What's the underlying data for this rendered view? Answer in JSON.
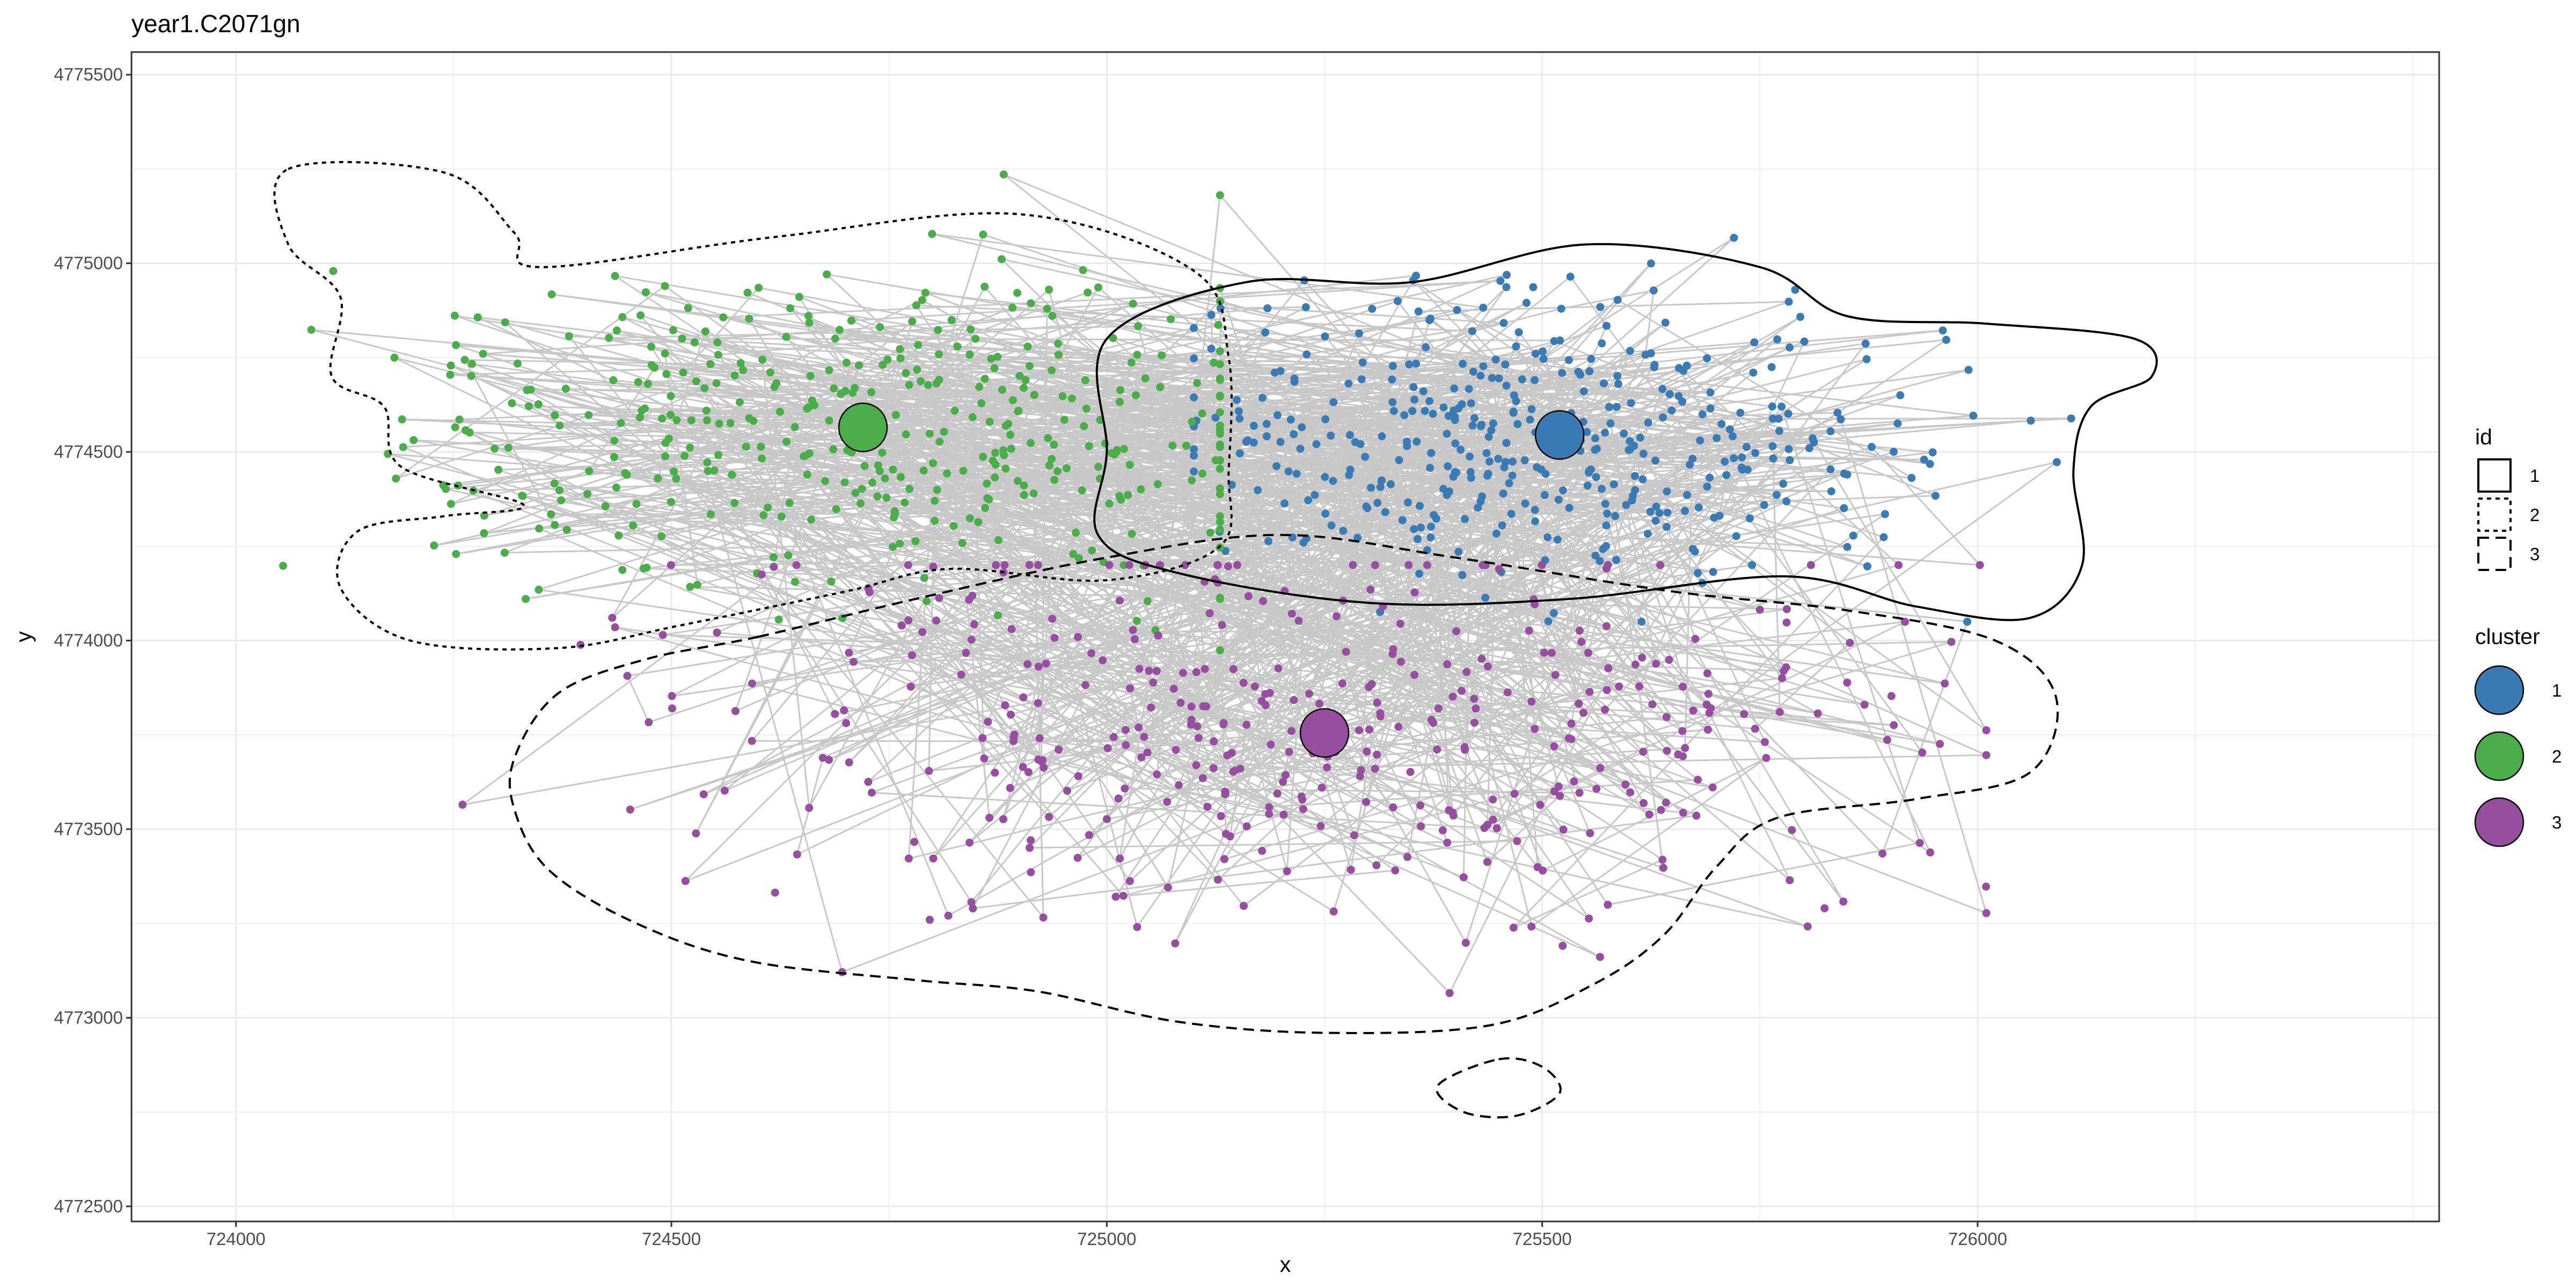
{
  "chart_data": {
    "type": "scatter",
    "title": "year1.C2071gn",
    "xlabel": "x",
    "ylabel": "y",
    "xlim": [
      723880,
      726530
    ],
    "ylim": [
      4772460,
      4775560
    ],
    "x_ticks": [
      724000,
      724500,
      725000,
      725500,
      726000
    ],
    "x_tick_labels": [
      "724000",
      "724500",
      "725000",
      "725500",
      "726000"
    ],
    "y_ticks": [
      4772500,
      4773000,
      4773500,
      4774000,
      4774500,
      4775000,
      4775500
    ],
    "y_tick_labels": [
      "4772500",
      "4773000",
      "4773500",
      "4774000",
      "4774500",
      "4775000",
      "4775500"
    ],
    "grid": true,
    "path_color": "#c8c8c8",
    "clusters": [
      {
        "label": "1",
        "color": "#3a7bb4",
        "centroid": [
          725520,
          4774545
        ],
        "extent": {
          "x": [
            725100,
            726200
          ],
          "y": [
            4774050,
            4775250
          ]
        }
      },
      {
        "label": "2",
        "color": "#4aad4a",
        "centroid": [
          724720,
          4774565
        ],
        "extent": {
          "x": [
            723740,
            725130
          ],
          "y": [
            4773900,
            4775270
          ]
        }
      },
      {
        "label": "3",
        "color": "#964e9f",
        "centroid": [
          725250,
          4773755
        ],
        "extent": {
          "x": [
            724170,
            726010
          ],
          "y": [
            4772600,
            4774200
          ]
        }
      }
    ],
    "contours": [
      {
        "id": "1",
        "dash": "solid",
        "points": [
          [
            725000,
            4774800
          ],
          [
            725160,
            4774950
          ],
          [
            725350,
            4774950
          ],
          [
            725550,
            4775050
          ],
          [
            725750,
            4774990
          ],
          [
            725850,
            4774860
          ],
          [
            726010,
            4774840
          ],
          [
            726180,
            4774800
          ],
          [
            726200,
            4774700
          ],
          [
            726130,
            4774620
          ],
          [
            726110,
            4774450
          ],
          [
            726120,
            4774200
          ],
          [
            726060,
            4774060
          ],
          [
            725930,
            4774090
          ],
          [
            725780,
            4774170
          ],
          [
            725530,
            4774110
          ],
          [
            725300,
            4774100
          ],
          [
            725080,
            4774180
          ],
          [
            724990,
            4774280
          ],
          [
            725000,
            4774500
          ]
        ]
      },
      {
        "id": "2",
        "dash": "dotted",
        "points": [
          [
            724060,
            4775250
          ],
          [
            724240,
            4775240
          ],
          [
            724320,
            4775080
          ],
          [
            724350,
            4774990
          ],
          [
            724620,
            4775070
          ],
          [
            724900,
            4775130
          ],
          [
            725100,
            4774980
          ],
          [
            725140,
            4774750
          ],
          [
            725140,
            4774450
          ],
          [
            725130,
            4774250
          ],
          [
            725000,
            4774160
          ],
          [
            724820,
            4774190
          ],
          [
            724700,
            4774130
          ],
          [
            724510,
            4774040
          ],
          [
            724370,
            4773980
          ],
          [
            724200,
            4774000
          ],
          [
            724120,
            4774140
          ],
          [
            724140,
            4774290
          ],
          [
            724240,
            4774330
          ],
          [
            724330,
            4774360
          ],
          [
            724190,
            4774460
          ],
          [
            724170,
            4774620
          ],
          [
            724110,
            4774700
          ],
          [
            724120,
            4774910
          ],
          [
            724060,
            4775050
          ]
        ]
      },
      {
        "id": "3",
        "dash": "dashed",
        "points": [
          [
            724600,
            4774010
          ],
          [
            724780,
            4774110
          ],
          [
            725000,
            4774220
          ],
          [
            725200,
            4774280
          ],
          [
            725400,
            4774220
          ],
          [
            725650,
            4774130
          ],
          [
            725850,
            4774080
          ],
          [
            726020,
            4774000
          ],
          [
            726090,
            4773850
          ],
          [
            726060,
            4773650
          ],
          [
            725930,
            4773580
          ],
          [
            725770,
            4773530
          ],
          [
            725700,
            4773400
          ],
          [
            725640,
            4773220
          ],
          [
            725560,
            4773090
          ],
          [
            725440,
            4772980
          ],
          [
            725250,
            4772960
          ],
          [
            725080,
            4772990
          ],
          [
            724920,
            4773070
          ],
          [
            724780,
            4773100
          ],
          [
            724590,
            4773150
          ],
          [
            724460,
            4773250
          ],
          [
            724360,
            4773390
          ],
          [
            724320,
            4773550
          ],
          [
            724320,
            4773690
          ],
          [
            724370,
            4773860
          ],
          [
            724470,
            4773950
          ]
        ]
      },
      {
        "id": "3",
        "dash": "dashed",
        "points": [
          [
            725450,
            4772890
          ],
          [
            725500,
            4772870
          ],
          [
            725520,
            4772800
          ],
          [
            725470,
            4772740
          ],
          [
            725410,
            4772750
          ],
          [
            725380,
            4772820
          ]
        ]
      }
    ],
    "legend": {
      "position": "right",
      "id": {
        "title": "id",
        "items": [
          {
            "label": "1",
            "dash": "solid"
          },
          {
            "label": "2",
            "dash": "dotted"
          },
          {
            "label": "3",
            "dash": "dashed"
          }
        ]
      },
      "cluster": {
        "title": "cluster",
        "items": [
          {
            "label": "1",
            "color": "#3a7bb4"
          },
          {
            "label": "2",
            "color": "#4aad4a"
          },
          {
            "label": "3",
            "color": "#964e9f"
          }
        ]
      }
    }
  }
}
